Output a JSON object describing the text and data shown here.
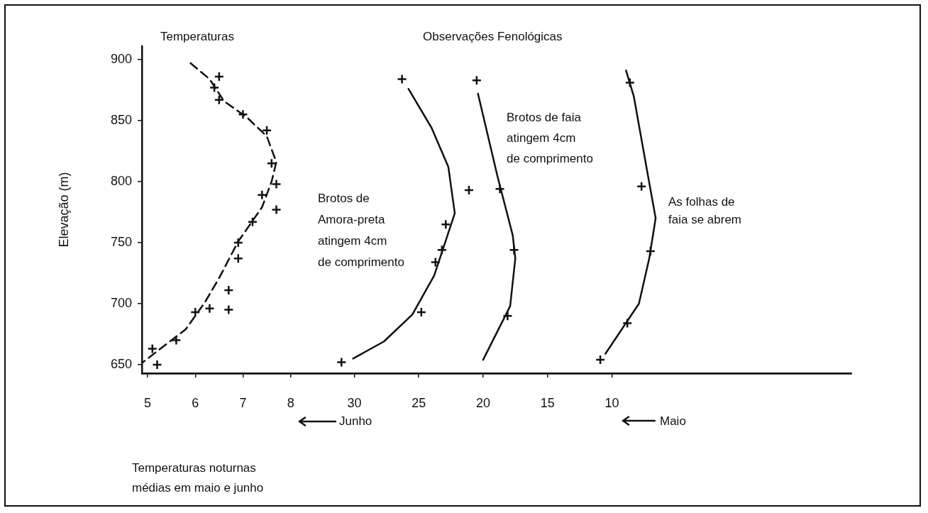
{
  "chart_data": {
    "type": "scatter",
    "ylabel": "Elevação (m)",
    "xlim": [
      4.88,
      19.76
    ],
    "xticks": [
      5,
      6,
      7,
      8
    ],
    "x2lim": [
      46.5,
      -8.6
    ],
    "x2ticks": [
      30,
      25,
      20,
      15,
      10
    ],
    "ylim": [
      643,
      911
    ],
    "yticks": [
      650,
      700,
      750,
      800,
      850,
      900
    ],
    "grid": false,
    "legend": false,
    "marker": "cross",
    "annotations": [
      "Temperaturas",
      "Observações Fenológicas",
      "Junho",
      "Maio",
      "Temperaturas noturnas médias em maio e junho"
    ],
    "series": [
      {
        "type": "scatter",
        "color": "#111111",
        "x": [
          6.5,
          6.4,
          6.5,
          7.0,
          7.5,
          7.6,
          7.7,
          7.4,
          7.7,
          7.2,
          6.9,
          6.9,
          6.7,
          6.7,
          6.3,
          6.0,
          5.6,
          5.1,
          5.2
        ],
        "values": [
          886,
          877,
          867,
          855,
          842,
          815,
          798,
          789,
          777,
          767,
          750,
          737,
          711,
          695,
          696,
          693,
          670,
          663,
          650
        ]
      },
      {
        "type": "line",
        "color": "#111111",
        "marker": "none",
        "line_style": "dashed",
        "x": [
          5.9,
          6.3,
          6.6,
          7.1,
          7.5,
          7.7,
          7.6,
          7.4,
          6.9,
          6.5,
          6.2,
          5.8,
          4.9
        ],
        "values": [
          897,
          884,
          866,
          852,
          837,
          816,
          800,
          779,
          751,
          721,
          701,
          679,
          652
        ]
      },
      {
        "type": "scatter",
        "axis": "x2",
        "color": "#111111",
        "x": [
          26.3,
          21.1,
          22.9,
          23.2,
          23.7,
          24.8,
          31.0
        ],
        "values": [
          884,
          793,
          765,
          744,
          734,
          693,
          652
        ]
      },
      {
        "type": "line",
        "axis": "x2",
        "color": "#111111",
        "marker": "none",
        "line_style": "solid",
        "name": "Brotos de Amora-preta atingem 4cm de comprimento",
        "x": [
          25.8,
          24.0,
          22.7,
          22.2,
          23.8,
          25.5,
          27.7,
          30.1
        ],
        "values": [
          876,
          844,
          812,
          774,
          723,
          691,
          669,
          655
        ]
      },
      {
        "type": "scatter",
        "axis": "x2",
        "color": "#111111",
        "x": [
          20.5,
          18.7,
          17.6,
          18.1
        ],
        "values": [
          883,
          794,
          744,
          690
        ]
      },
      {
        "type": "line",
        "axis": "x2",
        "color": "#111111",
        "marker": "none",
        "line_style": "solid",
        "name": "Brotos de faia atingem 4cm de comprimento",
        "x": [
          20.4,
          18.9,
          17.7,
          17.5,
          17.9,
          20.0
        ],
        "values": [
          872,
          805,
          756,
          737,
          698,
          654
        ]
      },
      {
        "type": "scatter",
        "axis": "x2",
        "color": "#111111",
        "x": [
          8.6,
          7.7,
          7.0,
          8.8,
          10.9
        ],
        "values": [
          881,
          796,
          743,
          684,
          654
        ]
      },
      {
        "type": "line",
        "axis": "x2",
        "color": "#111111",
        "marker": "none",
        "line_style": "solid",
        "name": "As folhas de faia se abrem",
        "x": [
          8.9,
          8.3,
          7.2,
          6.6,
          7.1,
          7.9,
          10.5
        ],
        "values": [
          891,
          870,
          805,
          770,
          737,
          700,
          659
        ]
      }
    ]
  }
}
